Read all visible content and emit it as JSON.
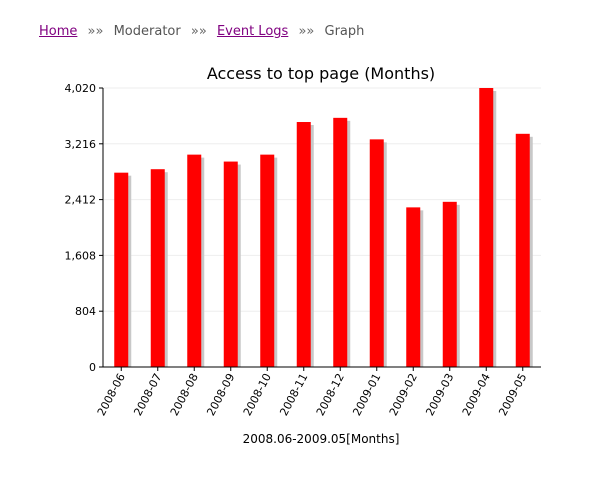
{
  "breadcrumb": {
    "items": [
      {
        "label": "Home",
        "link": true
      },
      {
        "label": "Moderator",
        "link": false
      },
      {
        "label": "Event Logs",
        "link": true
      },
      {
        "label": "Graph",
        "link": false
      }
    ],
    "separator": "»»"
  },
  "chart_data": {
    "type": "bar",
    "title": "Access to top page (Months)",
    "xlabel": "2008.06-2009.05[Months]",
    "ylabel": "",
    "categories": [
      "2008-06",
      "2008-07",
      "2008-08",
      "2008-09",
      "2008-10",
      "2008-11",
      "2008-12",
      "2009-01",
      "2009-02",
      "2009-03",
      "2009-04",
      "2009-05"
    ],
    "values": [
      2800,
      2850,
      3060,
      2960,
      3060,
      3530,
      3590,
      3280,
      2300,
      2380,
      4020,
      3360
    ],
    "yticks": [
      0,
      804,
      1608,
      2412,
      3216,
      4020
    ],
    "ytick_labels": [
      "0",
      "804",
      "1,608",
      "2,412",
      "3,216",
      "4,020"
    ],
    "ylim": [
      0,
      4020
    ],
    "grid": true,
    "bar_color": "#ff0000",
    "shadow_color": "#c8c8c8"
  }
}
